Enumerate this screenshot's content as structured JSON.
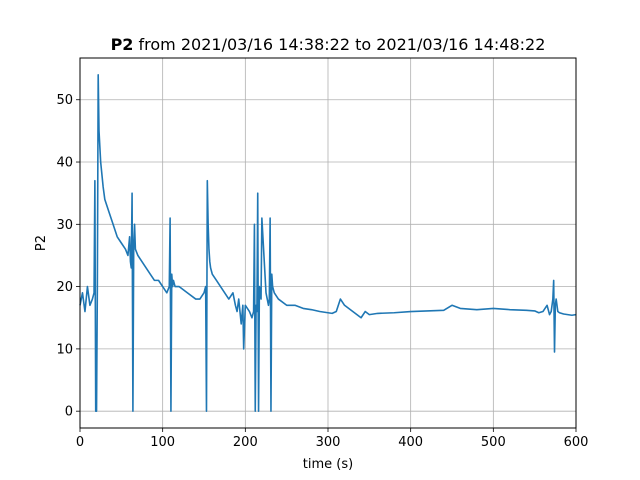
{
  "chart_data": {
    "type": "line",
    "title_var": "P2",
    "title_rest": " from 2021/03/16 14:38:22 to 2021/03/16 14:48:22",
    "xlabel": "time (s)",
    "ylabel": "P2",
    "xlim": [
      0,
      600
    ],
    "ylim": [
      -2.7,
      56.7
    ],
    "xticks": [
      0,
      100,
      200,
      300,
      400,
      500,
      600
    ],
    "yticks": [
      0,
      10,
      20,
      30,
      40,
      50
    ],
    "grid": true,
    "series_color": "#1f77b4",
    "series": [
      {
        "x": [
          0,
          3,
          6,
          9,
          12,
          15,
          17,
          18,
          19,
          20,
          21,
          22,
          23,
          25,
          28,
          30,
          35,
          40,
          45,
          50,
          55,
          58,
          60,
          61,
          62,
          63,
          64,
          65,
          66,
          67,
          70,
          75,
          80,
          85,
          90,
          95,
          100,
          105,
          108,
          109,
          110,
          111,
          112,
          113,
          115,
          120,
          130,
          140,
          145,
          150,
          152,
          153,
          154,
          155,
          156,
          157,
          158,
          160,
          165,
          170,
          175,
          180,
          185,
          188,
          190,
          192,
          195,
          197,
          198,
          200,
          205,
          208,
          210,
          211,
          212,
          213,
          214,
          215,
          216,
          217,
          218,
          219,
          220,
          225,
          228,
          229,
          230,
          231,
          232,
          233,
          235,
          240,
          250,
          260,
          270,
          280,
          290,
          300,
          305,
          310,
          315,
          320,
          330,
          340,
          345,
          350,
          360,
          380,
          400,
          420,
          440,
          450,
          460,
          470,
          480,
          500,
          520,
          540,
          550,
          555,
          560,
          565,
          568,
          570,
          572,
          573,
          574,
          575,
          576,
          578,
          580,
          585,
          590,
          595,
          600
        ],
        "y": [
          17,
          19,
          16,
          20,
          17,
          18,
          19,
          37,
          0,
          0,
          20,
          54,
          45,
          40,
          36,
          34,
          32,
          30,
          28,
          27,
          26,
          25,
          28,
          24,
          23,
          35,
          0,
          27,
          30,
          26,
          25,
          24,
          23,
          22,
          21,
          21,
          20,
          19,
          20,
          31,
          0,
          22,
          20,
          21,
          20,
          20,
          19,
          18,
          18,
          19,
          20,
          0,
          37,
          30,
          26,
          24,
          23,
          22,
          21,
          20,
          19,
          18,
          19,
          17,
          16,
          18,
          14,
          17,
          10,
          17,
          16,
          15,
          16,
          30,
          0,
          17,
          16,
          35,
          0,
          20,
          19,
          18,
          31,
          19,
          17,
          18,
          31,
          0,
          22,
          20,
          19,
          18,
          17,
          17,
          16.5,
          16.3,
          16,
          15.8,
          15.7,
          16,
          18,
          17,
          16,
          15,
          16,
          15.5,
          15.7,
          15.8,
          16,
          16.1,
          16.2,
          17,
          16.5,
          16.4,
          16.3,
          16.5,
          16.3,
          16.2,
          16.1,
          15.8,
          16,
          17,
          15.5,
          16,
          18,
          21,
          9.5,
          17,
          18,
          16,
          15.8,
          15.6,
          15.5,
          15.4,
          15.5
        ]
      }
    ]
  }
}
